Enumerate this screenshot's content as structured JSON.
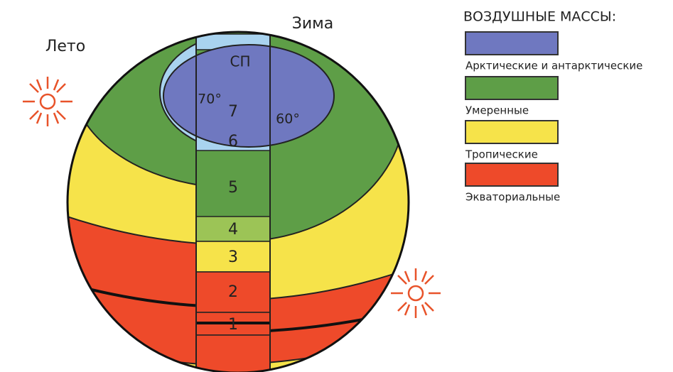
{
  "labels": {
    "summer": "Лето",
    "winter": "Зима",
    "pole": "СП",
    "lat70": "70°",
    "lat60": "60°"
  },
  "zones": [
    "1",
    "2",
    "3",
    "4",
    "5",
    "6",
    "7"
  ],
  "legend": {
    "title": "ВОЗДУШНЫЕ МАССЫ:",
    "items": [
      {
        "name": "Арктические и антарктические",
        "color": "#6f78c0"
      },
      {
        "name": "Умеренные",
        "color": "#5e9e47"
      },
      {
        "name": "Тропические",
        "color": "#f6e34a"
      },
      {
        "name": "Экваториальные",
        "color": "#ee4a2a"
      }
    ]
  }
}
